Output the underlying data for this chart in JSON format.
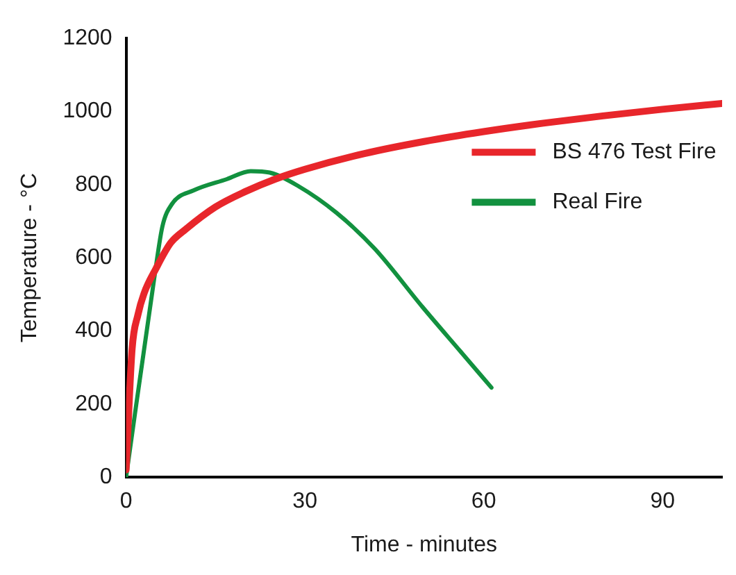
{
  "chart_data": {
    "type": "line",
    "xlabel": "Time - minutes",
    "ylabel": "Temperature - °C",
    "xlim": [
      0,
      100
    ],
    "xticks": [
      0,
      30,
      60,
      90
    ],
    "ylim": [
      0,
      1200
    ],
    "yticks": [
      0,
      200,
      400,
      600,
      800,
      1000,
      1200
    ],
    "grid": false,
    "legend": "right",
    "marker": "none",
    "line_style": "solid",
    "series": [
      {
        "name": "BS 476 Test Fire",
        "color": "#e8262b",
        "x": [
          0,
          1,
          2,
          3,
          5,
          7.5,
          10,
          15,
          20,
          25,
          30,
          40,
          50,
          60,
          70,
          80,
          90,
          100
        ],
        "values": [
          20,
          349,
          445,
          502,
          570,
          641,
          678,
          739,
          781,
          815,
          842,
          885,
          918,
          945,
          968,
          988,
          1006,
          1022
        ]
      },
      {
        "name": "Real Fire",
        "color": "#12913f",
        "x": [
          0,
          4.9,
          6.1,
          7.7,
          11.3,
          16.9,
          20.9,
          24.1,
          28.9,
          35.3,
          41.7,
          49.7,
          56.1,
          61.3
        ],
        "values": [
          0,
          564,
          686,
          747,
          784,
          815,
          837,
          833,
          796,
          723,
          625,
          466,
          344,
          245
        ]
      }
    ]
  }
}
